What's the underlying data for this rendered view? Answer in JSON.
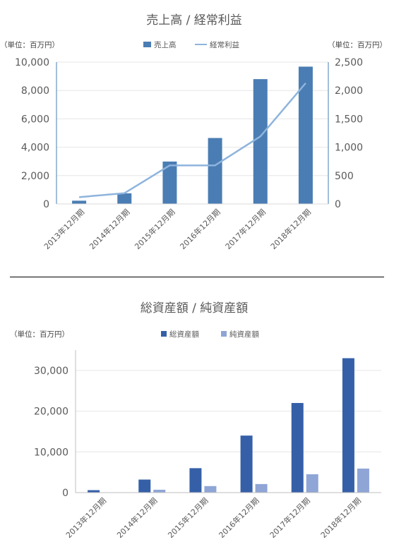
{
  "chart_data": [
    {
      "type": "bar",
      "title": "売上高 / 経常利益",
      "left_unit": "（単位：百万円）",
      "right_unit": "（単位：百万円）",
      "categories": [
        "2013年12月期",
        "2014年12月期",
        "2015年12月期",
        "2016年12月期",
        "2017年12月期",
        "2018年12月期"
      ],
      "series": [
        {
          "name": "売上高",
          "type": "bar",
          "axis": "left",
          "color": "#4a7db3",
          "values": [
            230,
            750,
            2990,
            4650,
            8800,
            9680
          ]
        },
        {
          "name": "経常利益",
          "type": "line",
          "axis": "right",
          "color": "#8eb4dd",
          "values": [
            120,
            190,
            680,
            680,
            1190,
            2130
          ]
        }
      ],
      "ylim": [
        0,
        10000
      ],
      "yticks": [
        "0",
        "2,000",
        "4,000",
        "6,000",
        "8,000",
        "10,000"
      ],
      "y2lim": [
        0,
        2500
      ],
      "y2ticks": [
        "0",
        "500",
        "1,000",
        "1,500",
        "2,000",
        "2,500"
      ],
      "legend": "top-center",
      "grid": true
    },
    {
      "type": "bar",
      "title": "総資産額 / 純資産額",
      "left_unit": "（単位：百万円）",
      "categories": [
        "2013年12月期",
        "2014年12月期",
        "2015年12月期",
        "2016年12月期",
        "2017年12月期",
        "2018年12月期"
      ],
      "series": [
        {
          "name": "総資産額",
          "color": "#3560a8",
          "values": [
            600,
            3200,
            6000,
            14000,
            22000,
            33000
          ]
        },
        {
          "name": "純資産額",
          "color": "#8fa5d6",
          "values": [
            0,
            700,
            1600,
            2100,
            4500,
            5900
          ]
        }
      ],
      "ylim": [
        0,
        35000
      ],
      "yticks": [
        "0",
        "10,000",
        "20,000",
        "30,000"
      ],
      "legend": "top-center",
      "grid": true
    }
  ]
}
